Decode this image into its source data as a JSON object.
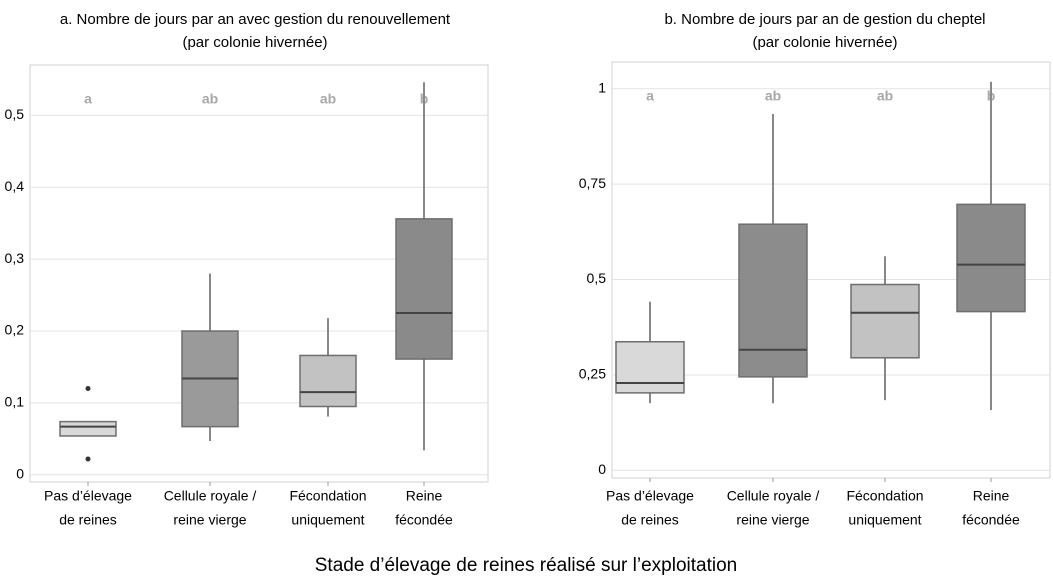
{
  "chart_data": [
    {
      "type": "box",
      "title": "a. Nombre de jours par an avec gestion du renouvellement",
      "subtitle": "(par colonie hivernée)",
      "categories": [
        [
          "Pas d’élevage",
          "de reines"
        ],
        [
          "Cellule royale /",
          "reine vierge"
        ],
        [
          "Fécondation",
          "uniquement"
        ],
        [
          "Reine",
          "fécondée"
        ]
      ],
      "annotations": [
        "a",
        "ab",
        "ab",
        "b"
      ],
      "colors": [
        "#d9d9d9",
        "#9a9a9a",
        "#c2c2c2",
        "#8a8a8a"
      ],
      "boxes": [
        {
          "min": 0.054,
          "q1": 0.054,
          "median": 0.067,
          "q3": 0.074,
          "max": 0.074,
          "outliers": [
            0.12,
            0.022
          ]
        },
        {
          "min": 0.047,
          "q1": 0.067,
          "median": 0.134,
          "q3": 0.2,
          "max": 0.28,
          "outliers": []
        },
        {
          "min": 0.081,
          "q1": 0.095,
          "median": 0.115,
          "q3": 0.166,
          "max": 0.218,
          "outliers": []
        },
        {
          "min": 0.034,
          "q1": 0.161,
          "median": 0.225,
          "q3": 0.356,
          "max": 0.546,
          "outliers": []
        }
      ],
      "ylim": [
        -0.01,
        0.57
      ],
      "yticks": [
        0,
        {
          "value": 0.1,
          "label": "0,1"
        },
        {
          "value": 0.2,
          "label": "0,2"
        },
        {
          "value": 0.3,
          "label": "0,3"
        },
        {
          "value": 0.4,
          "label": "0,4"
        },
        {
          "value": 0.5,
          "label": "0,5"
        }
      ],
      "grid": true
    },
    {
      "type": "box",
      "title": "b. Nombre de jours par an de gestion du cheptel",
      "subtitle": "(par colonie hivernée)",
      "categories": [
        [
          "Pas d’élevage",
          "de reines"
        ],
        [
          "Cellule royale /",
          "reine vierge"
        ],
        [
          "Fécondation",
          "uniquement"
        ],
        [
          "Reine",
          "fécondée"
        ]
      ],
      "annotations": [
        "a",
        "ab",
        "ab",
        "b"
      ],
      "colors": [
        "#d9d9d9",
        "#8c8c8c",
        "#c2c2c2",
        "#8a8a8a"
      ],
      "boxes": [
        {
          "min": 0.176,
          "q1": 0.203,
          "median": 0.229,
          "q3": 0.337,
          "max": 0.442,
          "outliers": []
        },
        {
          "min": 0.176,
          "q1": 0.245,
          "median": 0.316,
          "q3": 0.645,
          "max": 0.934,
          "outliers": []
        },
        {
          "min": 0.184,
          "q1": 0.295,
          "median": 0.413,
          "q3": 0.487,
          "max": 0.561,
          "outliers": []
        },
        {
          "min": 0.158,
          "q1": 0.416,
          "median": 0.539,
          "q3": 0.697,
          "max": 1.018,
          "outliers": []
        }
      ],
      "ylim": [
        -0.02,
        1.07
      ],
      "yticks": [
        0,
        {
          "value": 0.25,
          "label": "0,25"
        },
        {
          "value": 0.5,
          "label": "0,5"
        },
        {
          "value": 0.75,
          "label": "0,75"
        },
        1
      ],
      "grid": true
    }
  ],
  "xlabel": "Stade d’élevage de reines réalisé sur l’exploitation"
}
